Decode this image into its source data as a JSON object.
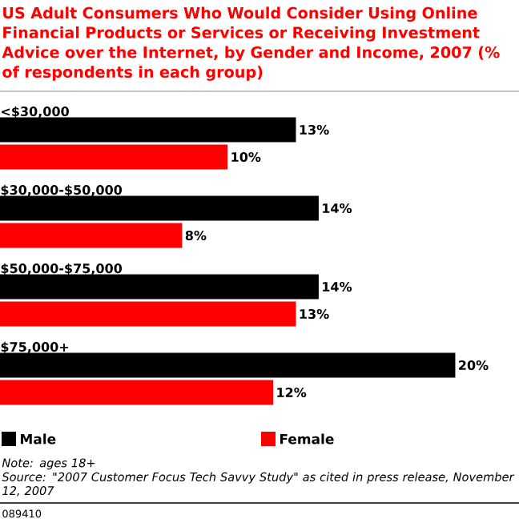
{
  "chart_data": {
    "type": "bar",
    "orientation": "horizontal",
    "title": "US Adult Consumers Who Would Consider Using Online Financial Products or Services or Receiving Investment Advice over the Internet, by Gender and Income, 2007 (% of respondents in each group)",
    "categories": [
      "<$30,000",
      "$30,000-$50,000",
      "$50,000-$75,000",
      "$75,000+"
    ],
    "series": [
      {
        "name": "Male",
        "color": "#000000",
        "values": [
          13,
          14,
          14,
          20
        ],
        "value_labels": [
          "13%",
          "14%",
          "14%",
          "20%"
        ]
      },
      {
        "name": "Female",
        "color": "#ff0000",
        "values": [
          10,
          8,
          13,
          12
        ],
        "value_labels": [
          "10%",
          "8%",
          "13%",
          "12%"
        ]
      }
    ],
    "legend": "bottom",
    "annotations": [
      "Note: ages 18+",
      "Source: \"2007 Customer Focus Tech Savvy Study\" as cited in press release, November 12, 2007",
      "089410"
    ]
  }
}
